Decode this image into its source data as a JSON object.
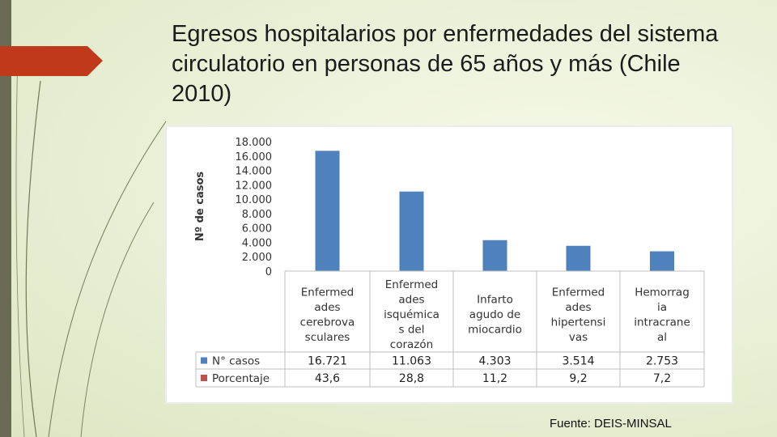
{
  "slide": {
    "title": "Egresos hospitalarios por enfermedades del sistema circulatorio en personas de 65 años y más (Chile 2010)",
    "source": "Fuente: DEIS-MINSAL"
  },
  "colors": {
    "bar": "#4f81bd",
    "porcentaje_marker": "#c0504d",
    "accent": "#c0391b"
  },
  "chart_data": {
    "type": "bar",
    "ylabel": "Nº de casos",
    "ylim": [
      0,
      18000
    ],
    "yticks": [
      "18.000",
      "16.000",
      "14.000",
      "12.000",
      "10.000",
      "8.000",
      "6.000",
      "4.000",
      "2.000",
      "0"
    ],
    "ytick_values": [
      18000,
      16000,
      14000,
      12000,
      10000,
      8000,
      6000,
      4000,
      2000,
      0
    ],
    "categories": [
      [
        "Enfermed",
        "ades",
        "cerebrova",
        "sculares"
      ],
      [
        "Enfermed",
        "ades",
        "isquémica",
        "s del",
        "corazón"
      ],
      [
        "Infarto",
        "agudo de",
        "miocardio"
      ],
      [
        "Enfermed",
        "ades",
        "hipertensi",
        "vas"
      ],
      [
        "Hemorrag",
        "ia",
        "intracrane",
        "al"
      ]
    ],
    "series": [
      {
        "name": "N° casos",
        "values": [
          16721,
          11063,
          4303,
          3514,
          2753
        ],
        "labels": [
          "16.721",
          "11.063",
          "4.303",
          "3.514",
          "2.753"
        ]
      },
      {
        "name": "Porcentaje",
        "values": [
          43.6,
          28.8,
          11.2,
          9.2,
          7.2
        ],
        "labels": [
          "43,6",
          "28,8",
          "11,2",
          "9,2",
          "7,2"
        ]
      }
    ],
    "grid": false,
    "legend": "data-table"
  }
}
